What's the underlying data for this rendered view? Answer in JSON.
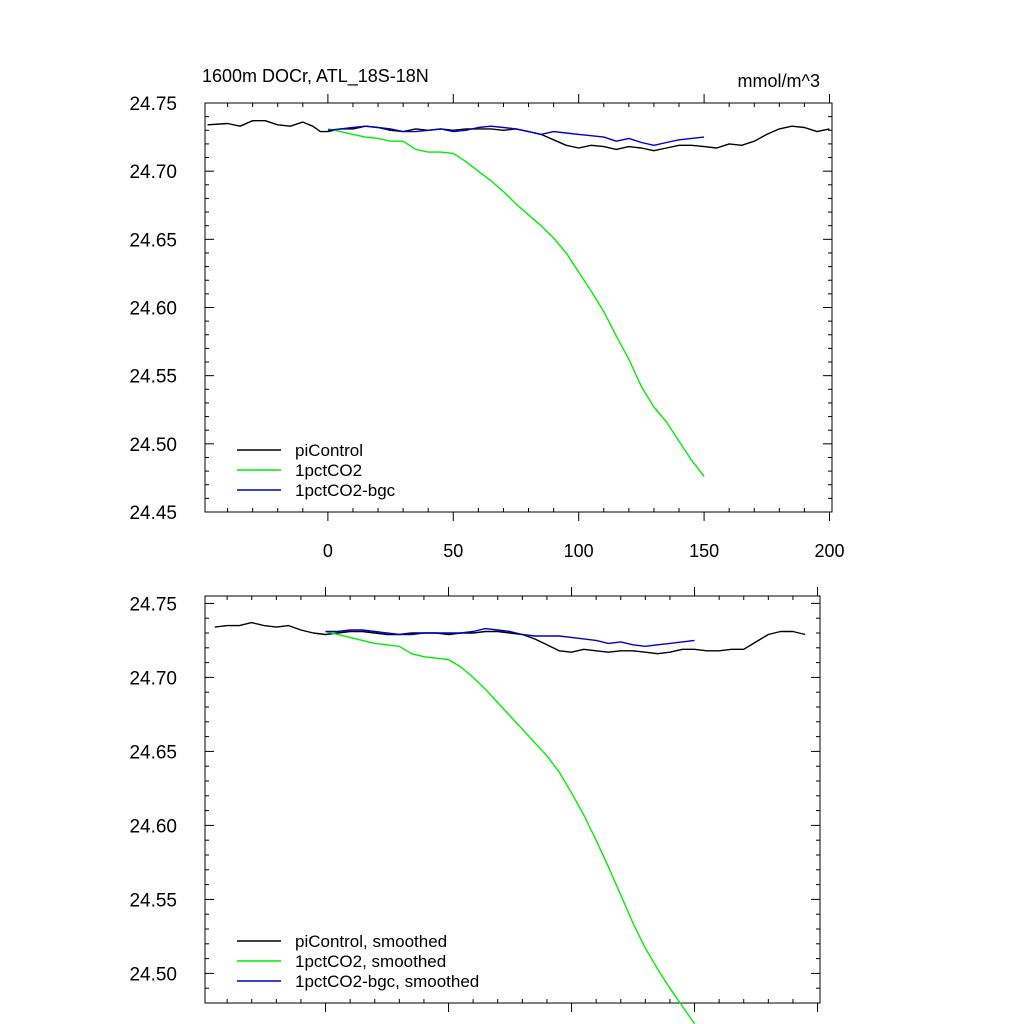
{
  "figure": {
    "title": "1600m DOCr, ATL_18S-18N",
    "units": "mmol/m^3"
  },
  "colors": {
    "piControl": "#000000",
    "1pctCO2": "#00ee00",
    "1pctCO2-bgc": "#0000cc"
  },
  "chart_data": [
    {
      "type": "line",
      "title": "1600m DOCr, ATL_18S-18N",
      "units": "mmol/m^3",
      "xlabel": "",
      "ylabel": "",
      "xlim": [
        -49,
        201
      ],
      "ylim": [
        24.45,
        24.75
      ],
      "xticks": [
        0,
        50,
        100,
        150,
        200
      ],
      "xtick_labels": [
        "0",
        "50",
        "100",
        "150",
        "200"
      ],
      "yticks": [
        24.45,
        24.5,
        24.55,
        24.6,
        24.65,
        24.7,
        24.75
      ],
      "ytick_labels": [
        "24.45",
        "24.50",
        "24.55",
        "24.60",
        "24.65",
        "24.70",
        "24.75"
      ],
      "legend_position": "bottom-left",
      "series": [
        {
          "name": "piControl",
          "color": "#000000",
          "x": [
            -48,
            -40,
            -35,
            -30,
            -25,
            -20,
            -15,
            -10,
            -6,
            -3,
            0,
            5,
            10,
            15,
            20,
            25,
            30,
            35,
            40,
            45,
            50,
            55,
            60,
            65,
            70,
            75,
            80,
            85,
            90,
            95,
            100,
            105,
            110,
            115,
            120,
            125,
            130,
            135,
            140,
            145,
            150,
            155,
            160,
            165,
            170,
            175,
            180,
            185,
            190,
            195,
            200
          ],
          "y": [
            24.734,
            24.735,
            24.733,
            24.737,
            24.737,
            24.734,
            24.733,
            24.736,
            24.733,
            24.729,
            24.729,
            24.731,
            24.731,
            24.733,
            24.732,
            24.73,
            24.729,
            24.731,
            24.73,
            24.731,
            24.73,
            24.731,
            24.731,
            24.731,
            24.73,
            24.731,
            24.729,
            24.727,
            24.723,
            24.719,
            24.717,
            24.719,
            24.718,
            24.716,
            24.718,
            24.717,
            24.715,
            24.717,
            24.719,
            24.719,
            24.718,
            24.717,
            24.72,
            24.719,
            24.722,
            24.727,
            24.731,
            24.733,
            24.732,
            24.729,
            24.731
          ]
        },
        {
          "name": "1pctCO2",
          "color": "#00ee00",
          "x": [
            0,
            5,
            10,
            15,
            20,
            25,
            30,
            35,
            40,
            45,
            50,
            55,
            60,
            65,
            70,
            75,
            80,
            85,
            90,
            95,
            100,
            105,
            110,
            115,
            120,
            125,
            130,
            135,
            140,
            145,
            150
          ],
          "y": [
            24.731,
            24.729,
            24.727,
            24.725,
            24.724,
            24.722,
            24.722,
            24.716,
            24.714,
            24.714,
            24.713,
            24.707,
            24.7,
            24.693,
            24.685,
            24.676,
            24.668,
            24.66,
            24.651,
            24.64,
            24.626,
            24.612,
            24.597,
            24.579,
            24.562,
            24.542,
            24.527,
            24.516,
            24.502,
            24.488,
            24.476
          ]
        },
        {
          "name": "1pctCO2-bgc",
          "color": "#0000cc",
          "x": [
            0,
            5,
            10,
            15,
            20,
            25,
            30,
            35,
            40,
            45,
            50,
            55,
            60,
            65,
            70,
            75,
            80,
            85,
            90,
            95,
            100,
            105,
            110,
            115,
            120,
            125,
            130,
            135,
            140,
            145,
            150
          ],
          "y": [
            24.73,
            24.731,
            24.732,
            24.733,
            24.732,
            24.731,
            24.729,
            24.729,
            24.73,
            24.731,
            24.729,
            24.73,
            24.732,
            24.733,
            24.732,
            24.731,
            24.729,
            24.727,
            24.729,
            24.728,
            24.727,
            24.726,
            24.725,
            24.722,
            24.724,
            24.721,
            24.719,
            24.721,
            24.723,
            24.724,
            24.725
          ]
        }
      ]
    },
    {
      "type": "line",
      "title": "",
      "xlabel": "",
      "ylabel": "",
      "xlim": [
        -49,
        201
      ],
      "ylim": [
        24.48,
        24.755
      ],
      "xticks": [
        0,
        50,
        100,
        150,
        200
      ],
      "xtick_labels": [],
      "yticks": [
        24.5,
        24.55,
        24.6,
        24.65,
        24.7,
        24.75
      ],
      "ytick_labels": [
        "24.50",
        "24.55",
        "24.60",
        "24.65",
        "24.70",
        "24.75"
      ],
      "legend_position": "bottom-left",
      "series": [
        {
          "name": "piControl, smoothed",
          "color": "#000000",
          "x": [
            -45,
            -40,
            -35,
            -30,
            -25,
            -20,
            -15,
            -10,
            -5,
            0,
            5,
            10,
            15,
            20,
            25,
            30,
            35,
            40,
            45,
            50,
            55,
            60,
            65,
            70,
            75,
            80,
            85,
            90,
            95,
            100,
            105,
            110,
            115,
            120,
            125,
            130,
            135,
            140,
            145,
            150,
            155,
            160,
            165,
            170,
            175,
            180,
            185,
            190,
            195
          ],
          "y": [
            24.734,
            24.735,
            24.735,
            24.737,
            24.735,
            24.734,
            24.735,
            24.732,
            24.73,
            24.729,
            24.73,
            24.731,
            24.731,
            24.73,
            24.729,
            24.729,
            24.73,
            24.73,
            24.73,
            24.729,
            24.73,
            24.73,
            24.731,
            24.731,
            24.73,
            24.729,
            24.726,
            24.722,
            24.718,
            24.717,
            24.719,
            24.718,
            24.717,
            24.718,
            24.718,
            24.717,
            24.716,
            24.717,
            24.719,
            24.719,
            24.718,
            24.718,
            24.719,
            24.719,
            24.724,
            24.729,
            24.731,
            24.731,
            24.729
          ]
        },
        {
          "name": "1pctCO2, smoothed",
          "color": "#00ee00",
          "x": [
            0,
            5,
            10,
            15,
            20,
            25,
            30,
            35,
            40,
            45,
            50,
            55,
            60,
            65,
            70,
            75,
            80,
            85,
            90,
            95,
            100,
            105,
            110,
            115,
            120,
            125,
            130,
            135,
            140,
            145,
            150
          ],
          "y": [
            24.731,
            24.729,
            24.727,
            24.725,
            24.723,
            24.722,
            24.721,
            24.716,
            24.714,
            24.713,
            24.712,
            24.707,
            24.7,
            24.692,
            24.683,
            24.674,
            24.665,
            24.656,
            24.647,
            24.636,
            24.622,
            24.607,
            24.59,
            24.572,
            24.553,
            24.534,
            24.517,
            24.503,
            24.49,
            24.478,
            24.466
          ]
        },
        {
          "name": "1pctCO2-bgc, smoothed",
          "color": "#0000cc",
          "x": [
            0,
            5,
            10,
            15,
            20,
            25,
            30,
            35,
            40,
            45,
            50,
            55,
            60,
            65,
            70,
            75,
            80,
            85,
            90,
            95,
            100,
            105,
            110,
            115,
            120,
            125,
            130,
            135,
            140,
            145,
            150
          ],
          "y": [
            24.731,
            24.731,
            24.732,
            24.732,
            24.731,
            24.73,
            24.729,
            24.729,
            24.73,
            24.73,
            24.73,
            24.73,
            24.731,
            24.733,
            24.732,
            24.731,
            24.729,
            24.728,
            24.728,
            24.728,
            24.727,
            24.726,
            24.725,
            24.723,
            24.724,
            24.722,
            24.721,
            24.722,
            24.723,
            24.724,
            24.725
          ]
        }
      ]
    }
  ]
}
